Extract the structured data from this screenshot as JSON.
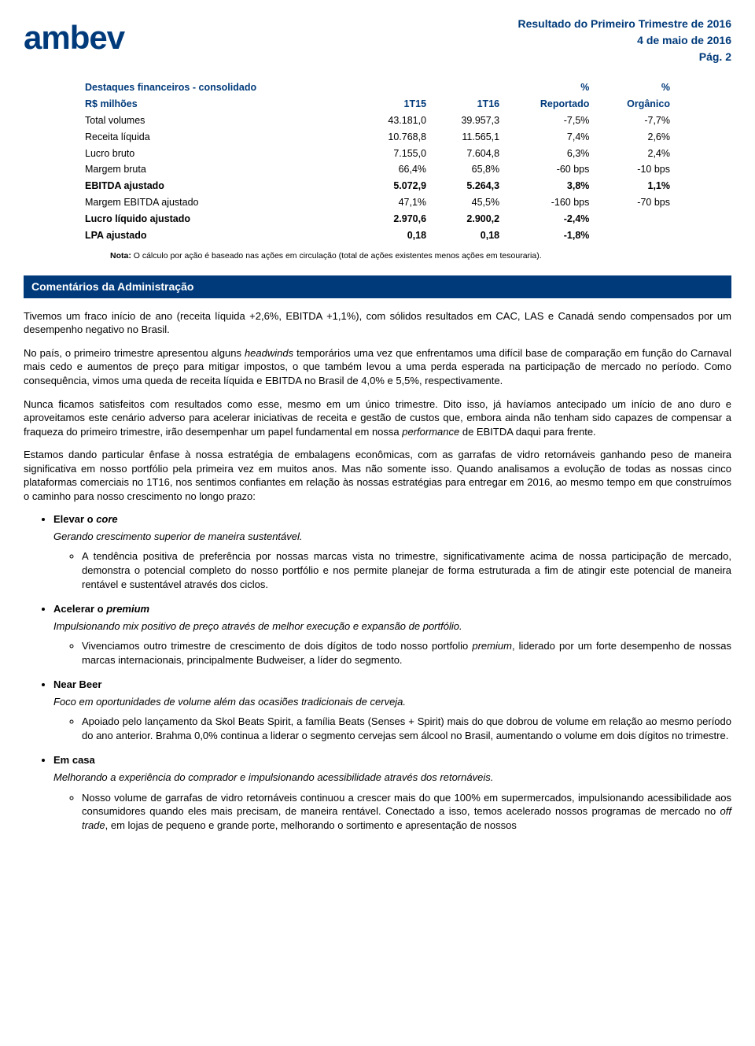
{
  "header": {
    "logo": "ambev",
    "title": "Resultado do Primeiro Trimestre de 2016",
    "date": "4 de maio de 2016",
    "page": "Pág. 2"
  },
  "fin_table": {
    "head": {
      "title": "Destaques financeiros - consolidado",
      "sub": "R$ milhões",
      "c1": "1T15",
      "c2": "1T16",
      "c3a": "%",
      "c3b": "Reportado",
      "c4a": "%",
      "c4b": "Orgânico"
    },
    "rows": [
      {
        "label": "Total volumes",
        "bold": false,
        "v1": "43.181,0",
        "v2": "39.957,3",
        "v3": "-7,5%",
        "v4": "-7,7%"
      },
      {
        "label": "Receita líquida",
        "bold": false,
        "v1": "10.768,8",
        "v2": "11.565,1",
        "v3": "7,4%",
        "v4": "2,6%"
      },
      {
        "label": "Lucro bruto",
        "bold": false,
        "v1": "7.155,0",
        "v2": "7.604,8",
        "v3": "6,3%",
        "v4": "2,4%"
      },
      {
        "label": "Margem bruta",
        "bold": false,
        "v1": "66,4%",
        "v2": "65,8%",
        "v3": "-60 bps",
        "v4": "-10 bps"
      },
      {
        "label": "EBITDA ajustado",
        "bold": true,
        "v1": "5.072,9",
        "v2": "5.264,3",
        "v3": "3,8%",
        "v4": "1,1%"
      },
      {
        "label": "Margem EBITDA ajustado",
        "bold": false,
        "v1": "47,1%",
        "v2": "45,5%",
        "v3": "-160 bps",
        "v4": "-70 bps"
      },
      {
        "label": "Lucro líquido ajustado",
        "bold": true,
        "v1": "2.970,6",
        "v2": "2.900,2",
        "v3": "-2,4%",
        "v4": ""
      },
      {
        "label": "LPA ajustado",
        "bold": true,
        "v1": "0,18",
        "v2": "0,18",
        "v3": "-1,8%",
        "v4": ""
      }
    ],
    "note_label": "Nota:",
    "note": " O cálculo por ação é baseado nas ações em circulação (total de ações existentes menos ações em tesouraria)."
  },
  "section_title": "Comentários da Administração",
  "paras": {
    "p1": "Tivemos um fraco início de ano (receita líquida +2,6%, EBITDA +1,1%), com sólidos resultados em CAC, LAS e Canadá sendo compensados por um desempenho negativo no Brasil.",
    "p2a": "No país, o primeiro trimestre apresentou alguns ",
    "p2_i": "headwinds",
    "p2b": " temporários uma vez que enfrentamos uma difícil base de comparação em função do Carnaval mais cedo e aumentos de preço para mitigar impostos, o que também levou a uma perda esperada na participação de mercado no período. Como consequência, vimos uma queda de receita líquida e EBITDA no Brasil de 4,0% e 5,5%, respectivamente.",
    "p3a": "Nunca ficamos satisfeitos com resultados como esse, mesmo em um único trimestre. Dito isso, já havíamos antecipado um início de ano duro e aproveitamos este cenário adverso para acelerar iniciativas de receita e gestão de custos que, embora ainda não tenham sido capazes de compensar a fraqueza do primeiro trimestre, irão desempenhar um papel fundamental em nossa ",
    "p3_i": "performance",
    "p3b": " de EBITDA daqui para frente.",
    "p4": "Estamos dando particular ênfase à nossa estratégia de embalagens econômicas, com as garrafas de vidro retornáveis ganhando peso de maneira significativa em nosso portfólio pela primeira vez em muitos anos. Mas não somente isso. Quando analisamos a evolução de todas as nossas cinco plataformas comerciais no 1T16, nos sentimos confiantes em relação às nossas estratégias para entregar em 2016, ao mesmo tempo em que construímos o caminho para nosso crescimento no longo prazo:"
  },
  "bullets": [
    {
      "title_a": "Elevar o ",
      "title_i": "core",
      "sub": "Gerando crescimento superior de maneira sustentável.",
      "items": [
        {
          "text": "A tendência positiva de preferência por nossas marcas vista no trimestre, significativamente acima de nossa participação de mercado, demonstra o potencial completo do nosso portfólio e nos permite planejar de forma estruturada a fim de atingir este potencial de maneira rentável e sustentável através dos ciclos."
        }
      ]
    },
    {
      "title_a": "Acelerar o ",
      "title_i": "premium",
      "sub": "Impulsionando mix positivo de preço através de melhor execução e expansão de portfólio.",
      "items": [
        {
          "text_a": "Vivenciamos outro trimestre de crescimento de dois dígitos de todo nosso portfolio ",
          "text_i": "premium",
          "text_b": ", liderado por um forte desempenho de nossas marcas internacionais, principalmente Budweiser, a líder do segmento."
        }
      ]
    },
    {
      "title_a": "Near Beer",
      "title_i": "",
      "sub": "Foco em oportunidades de volume além das ocasiões tradicionais de cerveja.",
      "items": [
        {
          "text": "Apoiado pelo lançamento da Skol Beats Spirit, a família Beats (Senses + Spirit) mais do que dobrou de volume em relação ao mesmo período do ano anterior. Brahma 0,0% continua a liderar o segmento cervejas sem álcool no Brasil, aumentando o volume em dois dígitos no trimestre."
        }
      ]
    },
    {
      "title_a": "Em casa",
      "title_i": "",
      "sub": "Melhorando a experiência do comprador e impulsionando acessibilidade através dos retornáveis.",
      "items": [
        {
          "text_a": "Nosso volume de garrafas de vidro retornáveis continuou a crescer mais do que 100% em supermercados, impulsionando acessibilidade aos consumidores quando eles mais precisam, de maneira rentável. Conectado a isso, temos acelerado nossos programas de mercado no ",
          "text_i": "off trade",
          "text_b": ", em lojas de pequeno e grande porte, melhorando o sortimento e apresentação de nossos"
        }
      ]
    }
  ]
}
